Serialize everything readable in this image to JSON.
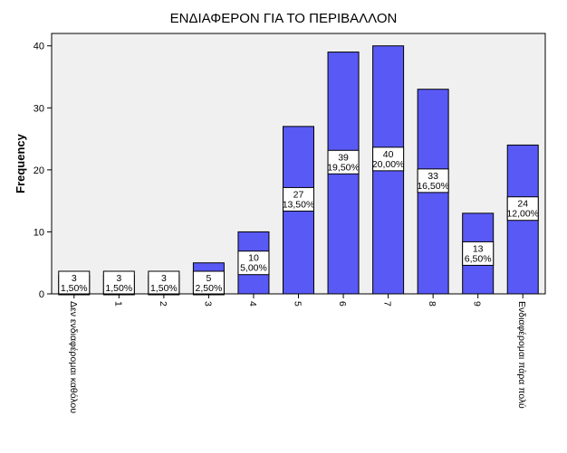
{
  "chart_data": {
    "type": "bar",
    "title": "ΕΝΔΙΑΦΕΡΟΝ ΓΙΑ ΤΟ ΠΕΡΙΒΑΛΛΟΝ",
    "xlabel": "",
    "ylabel": "Frequency",
    "ylim": [
      0,
      42
    ],
    "yticks": [
      0,
      10,
      20,
      30,
      40
    ],
    "categories": [
      "Δεν ενδιαφέρομαι καθόλου",
      "1",
      "2",
      "3",
      "4",
      "5",
      "6",
      "7",
      "8",
      "9",
      "Ενδιαφέρομαι πάρα πολύ"
    ],
    "values": [
      3,
      3,
      3,
      5,
      10,
      27,
      39,
      40,
      33,
      13,
      24
    ],
    "percents": [
      "1,50%",
      "1,50%",
      "1,50%",
      "2,50%",
      "5,00%",
      "13,50%",
      "19,50%",
      "20,00%",
      "16,50%",
      "6,50%",
      "12,00%"
    ],
    "grid": false,
    "legend": "none",
    "colors": {
      "bar": "#5959f5",
      "plot_bg": "#f0f0f0",
      "axis": "#000000"
    }
  }
}
